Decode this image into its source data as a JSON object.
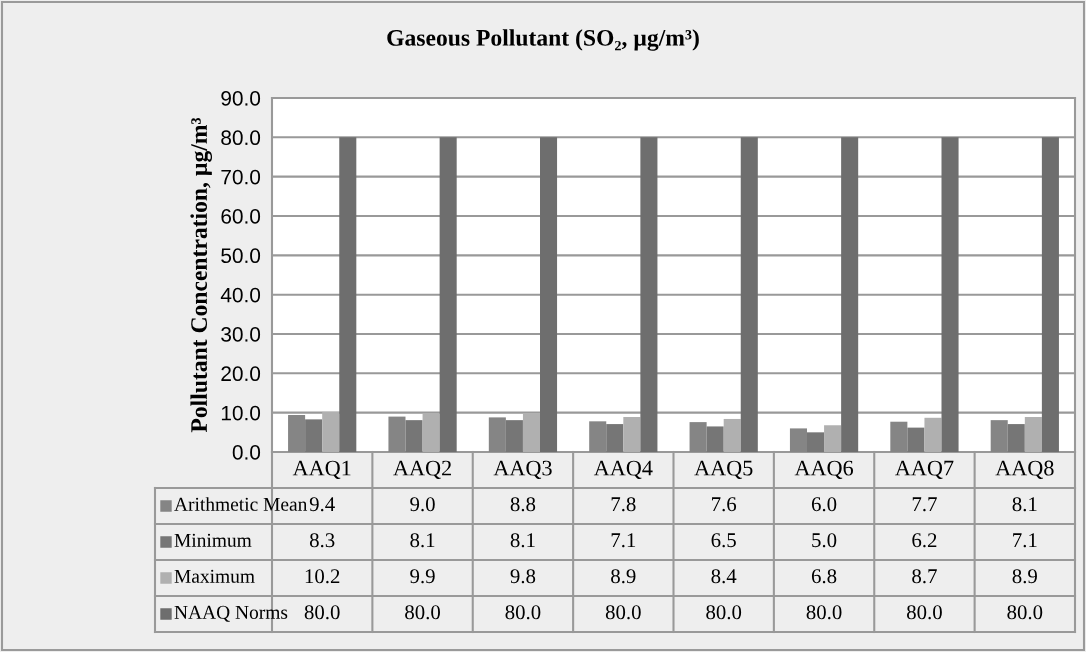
{
  "chart_data": {
    "type": "bar",
    "title": "Gaseous Pollutant (SO₂, µg/m³)",
    "ylabel": "Pollutant Concentration, µg/m³",
    "categories": [
      "AAQ1",
      "AAQ2",
      "AAQ3",
      "AAQ4",
      "AAQ5",
      "AAQ6",
      "AAQ7",
      "AAQ8"
    ],
    "series": [
      {
        "name": "Arithmetic Mean",
        "color": "#858585",
        "values": [
          9.4,
          9.0,
          8.8,
          7.8,
          7.6,
          6.0,
          7.7,
          8.1
        ],
        "value_labels": [
          "9.4",
          "9.0",
          "8.8",
          "7.8",
          "7.6",
          "6.0",
          "7.7",
          "8.1"
        ]
      },
      {
        "name": "Minimum",
        "color": "#767676",
        "values": [
          8.3,
          8.1,
          8.1,
          7.1,
          6.5,
          5.0,
          6.2,
          7.1
        ],
        "value_labels": [
          "8.3",
          "8.1",
          "8.1",
          "7.1",
          "6.5",
          "5.0",
          "6.2",
          "7.1"
        ]
      },
      {
        "name": "Maximum",
        "color": "#b0b0b0",
        "values": [
          10.2,
          9.9,
          9.8,
          8.9,
          8.4,
          6.8,
          8.7,
          8.9
        ],
        "value_labels": [
          "10.2",
          "9.9",
          "9.8",
          "8.9",
          "8.4",
          "6.8",
          "8.7",
          "8.9"
        ]
      },
      {
        "name": "NAAQ Norms",
        "color": "#6e6e6e",
        "values": [
          80.0,
          80.0,
          80.0,
          80.0,
          80.0,
          80.0,
          80.0,
          80.0
        ],
        "value_labels": [
          "80.0",
          "80.0",
          "80.0",
          "80.0",
          "80.0",
          "80.0",
          "80.0",
          "80.0"
        ]
      }
    ],
    "ylim": [
      0,
      90
    ],
    "yticks": [
      {
        "value": 0,
        "label": "0.0"
      },
      {
        "value": 10,
        "label": "10.0"
      },
      {
        "value": 20,
        "label": "20.0"
      },
      {
        "value": 30,
        "label": "30.0"
      },
      {
        "value": 40,
        "label": "40.0"
      },
      {
        "value": 50,
        "label": "50.0"
      },
      {
        "value": 60,
        "label": "60.0"
      },
      {
        "value": 70,
        "label": "70.0"
      },
      {
        "value": 80,
        "label": "80.0"
      },
      {
        "value": 90,
        "label": "90.0"
      }
    ],
    "grid": "y",
    "legend": "bottom"
  }
}
